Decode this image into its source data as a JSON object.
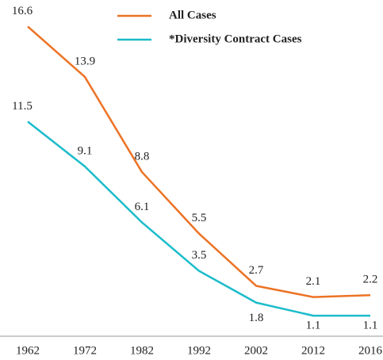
{
  "chart_data": {
    "type": "line",
    "categories": [
      "1962",
      "1972",
      "1982",
      "1992",
      "2002",
      "2012",
      "2016"
    ],
    "series": [
      {
        "name": "All Cases",
        "color": "#ec7325",
        "values": [
          16.6,
          13.9,
          8.8,
          5.5,
          2.7,
          2.1,
          2.2
        ]
      },
      {
        "name": "*Diversity Contract Cases",
        "color": "#1bbccb",
        "values": [
          11.5,
          9.1,
          6.1,
          3.5,
          1.8,
          1.1,
          1.1
        ]
      }
    ],
    "ylim": [
      0,
      17
    ],
    "legend": "top"
  }
}
